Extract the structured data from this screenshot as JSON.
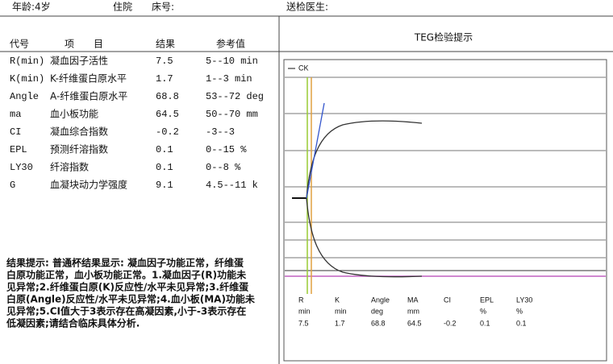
{
  "header": {
    "age": "年龄:4岁",
    "ward": "住院",
    "bed": "床号:",
    "doctor": "送检医生:"
  },
  "table": {
    "columns": [
      "代号",
      "项　　目",
      "结果",
      "参考值"
    ],
    "rows": [
      [
        "R(min)",
        "凝血因子活性",
        "7.5",
        "5--10 min"
      ],
      [
        "K(min)",
        "K-纤维蛋白原水平",
        "1.7",
        "1--3 min"
      ],
      [
        "Angle",
        "A-纤维蛋白原水平",
        "68.8",
        "53--72 deg"
      ],
      [
        "ma",
        "血小板功能",
        "64.5",
        "50--70 mm"
      ],
      [
        "CI",
        "凝血综合指数",
        "-0.2",
        "-3--3"
      ],
      [
        "EPL",
        "预测纤溶指数",
        "0.1",
        "0--15 %"
      ],
      [
        "LY30",
        "纤溶指数",
        "0.1",
        "0--8 %"
      ],
      [
        "G",
        "血凝块动力学强度",
        "9.1",
        "4.5--11 k"
      ]
    ]
  },
  "conclusion": [
    "结果提示: 普通杯结果显示: 凝血因子功能正常，纤维蛋",
    "白原功能正常，血小板功能正常。1.凝血因子(R)功能未",
    "见异常;2.纤维蛋白原(K)反应性/水平未见异常;3.纤维蛋",
    "白原(Angle)反应性/水平未见异常;4.血小板(MA)功能未",
    "见异常;5.CI值大于3表示存在高凝因素,小于-3表示存在",
    "低凝因素;请结合临床具体分析."
  ],
  "teg": {
    "title": "TEG检验提示",
    "legend": "CK",
    "params": [
      {
        "name": "R",
        "unit": "min",
        "value": "7.5"
      },
      {
        "name": "K",
        "unit": "min",
        "value": "1.7"
      },
      {
        "name": "Angle",
        "unit": "deg",
        "value": "68.8"
      },
      {
        "name": "MA",
        "unit": "mm",
        "value": "64.5"
      },
      {
        "name": "CI",
        "value": "-0.2"
      },
      {
        "name": "EPL",
        "unit": "%",
        "value": "0.1"
      },
      {
        "name": "LY30",
        "unit": "%",
        "value": "0.1"
      }
    ]
  }
}
